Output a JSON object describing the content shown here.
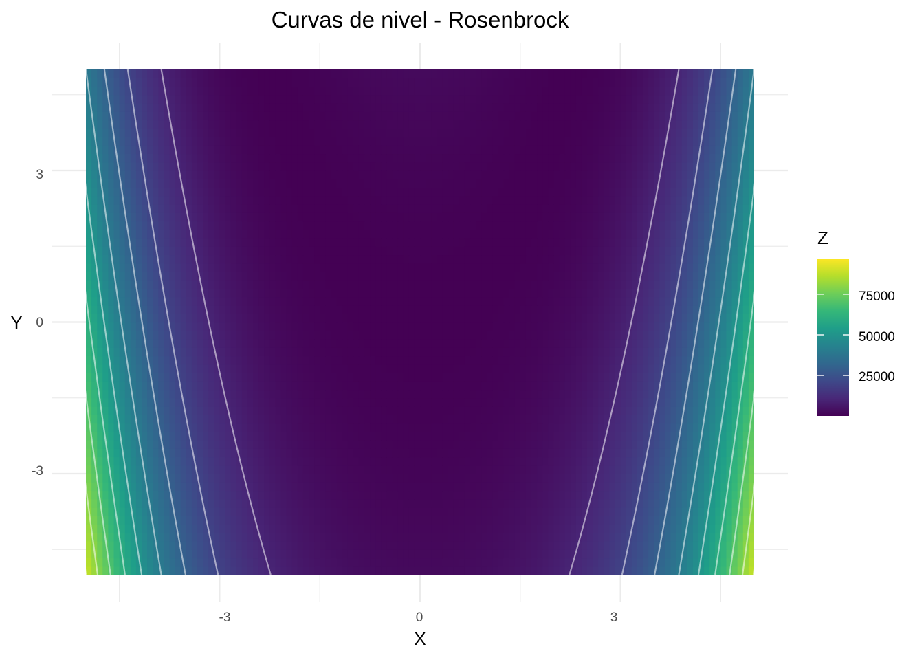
{
  "chart_data": {
    "type": "heatmap",
    "title": "Curvas de nivel - Rosenbrock",
    "xlabel": "X",
    "ylabel": "Y",
    "xlim": [
      -5,
      5
    ],
    "ylim": [
      -5,
      5
    ],
    "x_ticks": [
      -3,
      0,
      3
    ],
    "y_ticks": [
      3,
      0,
      -3
    ],
    "x_tick_labels": [
      "-3",
      "0",
      "3"
    ],
    "y_tick_labels": [
      "3",
      "0",
      "-3"
    ],
    "function": "(1 - x)^2 + 100 * (y - x^2)^2",
    "z_range": [
      0,
      97000
    ],
    "contour_breaks": [
      10000,
      20000,
      30000,
      40000,
      50000,
      60000,
      70000,
      80000,
      90000
    ],
    "contour_color": "#ffffff",
    "colormap": "viridis",
    "colors": [
      "#440154",
      "#482878",
      "#3e4989",
      "#31688e",
      "#26828e",
      "#1f9e89",
      "#35b779",
      "#6ece58",
      "#b5de2b",
      "#fde725"
    ],
    "grid": true,
    "legend": {
      "title": "Z",
      "placement": "right",
      "breaks": [
        25000,
        50000,
        75000
      ],
      "labels": [
        "25000",
        "50000",
        "75000"
      ]
    }
  }
}
